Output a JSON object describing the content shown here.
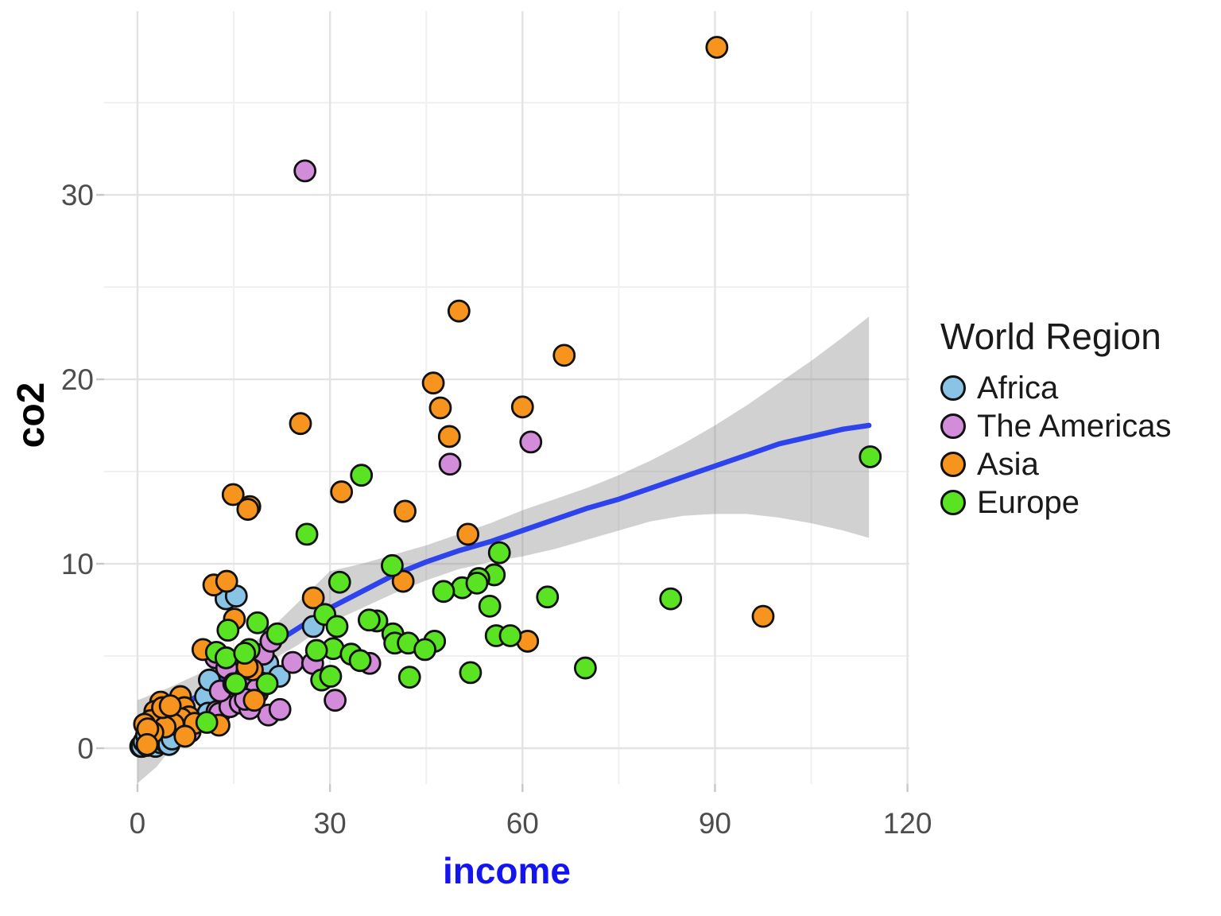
{
  "chart_data": {
    "type": "scatter",
    "title": "",
    "xlabel": "income",
    "ylabel": "co2",
    "x_ticks": [
      0,
      30,
      60,
      90,
      120
    ],
    "y_ticks": [
      0,
      10,
      20,
      30
    ],
    "x_minor_ticks": [
      15,
      45,
      75,
      105
    ],
    "y_minor_ticks": [
      5,
      15,
      25,
      35
    ],
    "xlim": [
      -5.2,
      120.3
    ],
    "ylim": [
      -1.94,
      39.96
    ],
    "grid": true,
    "legend": {
      "title": "World Region",
      "position": "right",
      "entries": [
        {
          "label": "Africa",
          "color": "#89C4E7"
        },
        {
          "label": "The Americas",
          "color": "#D28CDA"
        },
        {
          "label": "Asia",
          "color": "#F7941E"
        },
        {
          "label": "Europe",
          "color": "#5AE322"
        }
      ]
    },
    "series": [
      {
        "name": "Africa",
        "color": "#89C4E7",
        "points": [
          [
            0.5,
            0.1
          ],
          [
            0.7,
            0.1
          ],
          [
            1.0,
            0.35
          ],
          [
            1.5,
            0.15
          ],
          [
            1.9,
            0.55
          ],
          [
            2.3,
            0.3
          ],
          [
            2.8,
            0.1
          ],
          [
            3.2,
            0.5
          ],
          [
            3.6,
            0.3
          ],
          [
            3.7,
            0.85
          ],
          [
            4.3,
            0.35
          ],
          [
            4.9,
            0.2
          ],
          [
            2.4,
            0.95
          ],
          [
            5.4,
            0.5
          ],
          [
            1.4,
            0.7
          ],
          [
            10.6,
            2.8
          ],
          [
            11.2,
            3.7
          ],
          [
            11.0,
            1.9
          ],
          [
            20.3,
            4.6
          ],
          [
            22.1,
            3.9
          ],
          [
            13.8,
            8.1
          ],
          [
            15.4,
            8.25
          ],
          [
            27.4,
            6.6
          ]
        ]
      },
      {
        "name": "The Americas",
        "color": "#D28CDA",
        "points": [
          [
            26.1,
            31.3
          ],
          [
            48.7,
            15.4
          ],
          [
            61.3,
            16.6
          ],
          [
            12.2,
            4.9
          ],
          [
            12.4,
            2.0
          ],
          [
            14.9,
            2.6
          ],
          [
            18.0,
            3.35
          ],
          [
            18.7,
            3.0
          ],
          [
            20.4,
            1.8
          ],
          [
            22.2,
            2.1
          ],
          [
            24.2,
            4.65
          ],
          [
            27.3,
            4.6
          ],
          [
            30.8,
            2.6
          ],
          [
            19.6,
            5.1
          ],
          [
            20.8,
            5.8
          ],
          [
            36.2,
            4.6
          ],
          [
            12.8,
            1.9
          ],
          [
            14.4,
            2.25
          ],
          [
            16.0,
            2.45
          ],
          [
            17.5,
            2.15
          ],
          [
            8.2,
            0.9
          ],
          [
            16.5,
            3.4
          ],
          [
            12.9,
            3.1
          ],
          [
            18.6,
            3.2
          ],
          [
            16.8,
            2.65
          ],
          [
            13.9,
            4.35
          ]
        ]
      },
      {
        "name": "Asia",
        "color": "#F7941E",
        "points": [
          [
            90.3,
            38.0
          ],
          [
            50.1,
            23.7
          ],
          [
            66.5,
            21.3
          ],
          [
            46.1,
            19.8
          ],
          [
            47.2,
            18.45
          ],
          [
            60.0,
            18.5
          ],
          [
            48.6,
            16.9
          ],
          [
            25.4,
            17.6
          ],
          [
            14.9,
            13.75
          ],
          [
            17.5,
            13.1
          ],
          [
            31.8,
            13.9
          ],
          [
            41.7,
            12.85
          ],
          [
            17.2,
            12.95
          ],
          [
            51.5,
            11.6
          ],
          [
            11.9,
            8.85
          ],
          [
            13.9,
            9.05
          ],
          [
            41.4,
            9.05
          ],
          [
            15.1,
            7.0
          ],
          [
            27.4,
            8.15
          ],
          [
            97.5,
            7.15
          ],
          [
            60.8,
            5.8
          ],
          [
            10.2,
            5.35
          ],
          [
            17.9,
            4.25
          ],
          [
            18.2,
            2.6
          ],
          [
            15.0,
            3.5
          ],
          [
            17.1,
            4.4
          ],
          [
            12.7,
            1.25
          ],
          [
            3.6,
            2.5
          ],
          [
            2.7,
            2.0
          ],
          [
            4.6,
            1.8
          ],
          [
            2.1,
            1.5
          ],
          [
            1.1,
            1.3
          ],
          [
            6.7,
            2.8
          ],
          [
            7.3,
            2.2
          ],
          [
            8.0,
            1.7
          ],
          [
            6.8,
            1.6
          ],
          [
            8.9,
            1.35
          ],
          [
            5.6,
            1.3
          ],
          [
            4.3,
            1.15
          ],
          [
            7.4,
            0.65
          ],
          [
            3.9,
            2.2
          ],
          [
            2.4,
            0.85
          ],
          [
            1.6,
            1.05
          ],
          [
            5.1,
            2.3
          ],
          [
            1.5,
            0.2
          ]
        ]
      },
      {
        "name": "Europe",
        "color": "#5AE322",
        "points": [
          [
            114.2,
            15.8
          ],
          [
            83.1,
            8.1
          ],
          [
            69.8,
            4.35
          ],
          [
            63.9,
            8.2
          ],
          [
            55.9,
            6.1
          ],
          [
            58.1,
            6.1
          ],
          [
            56.4,
            10.6
          ],
          [
            55.6,
            9.4
          ],
          [
            53.2,
            9.2
          ],
          [
            50.6,
            8.7
          ],
          [
            47.7,
            8.5
          ],
          [
            54.9,
            7.7
          ],
          [
            51.9,
            4.1
          ],
          [
            46.3,
            5.8
          ],
          [
            42.4,
            3.85
          ],
          [
            34.9,
            14.8
          ],
          [
            26.4,
            11.6
          ],
          [
            39.7,
            9.9
          ],
          [
            31.5,
            9.0
          ],
          [
            52.9,
            8.95
          ],
          [
            37.3,
            6.9
          ],
          [
            36.1,
            6.95
          ],
          [
            39.8,
            6.2
          ],
          [
            40.1,
            5.7
          ],
          [
            42.2,
            5.7
          ],
          [
            44.8,
            5.35
          ],
          [
            29.2,
            7.25
          ],
          [
            31.1,
            6.6
          ],
          [
            30.5,
            5.4
          ],
          [
            33.3,
            5.1
          ],
          [
            34.7,
            4.75
          ],
          [
            15.3,
            3.5
          ],
          [
            12.3,
            5.2
          ],
          [
            13.8,
            4.9
          ],
          [
            14.1,
            6.4
          ],
          [
            18.7,
            6.8
          ],
          [
            21.8,
            6.2
          ],
          [
            17.4,
            5.35
          ],
          [
            27.9,
            5.3
          ],
          [
            20.2,
            3.5
          ],
          [
            28.7,
            3.7
          ],
          [
            30.1,
            3.9
          ],
          [
            16.7,
            5.15
          ],
          [
            10.8,
            1.4
          ]
        ]
      }
    ],
    "smooth": {
      "color": "#2E43EC",
      "band_color": "rgba(128,128,128,0.36)",
      "line": [
        [
          0,
          0.6
        ],
        [
          5,
          1.8
        ],
        [
          10,
          3.0
        ],
        [
          15,
          4.2
        ],
        [
          20,
          5.4
        ],
        [
          25,
          6.5
        ],
        [
          30,
          7.6
        ],
        [
          35,
          8.5
        ],
        [
          40,
          9.4
        ],
        [
          45,
          10.1
        ],
        [
          50,
          10.7
        ],
        [
          55,
          11.2
        ],
        [
          60,
          11.8
        ],
        [
          65,
          12.4
        ],
        [
          70,
          13.0
        ],
        [
          75,
          13.5
        ],
        [
          80,
          14.1
        ],
        [
          85,
          14.7
        ],
        [
          90,
          15.3
        ],
        [
          95,
          15.9
        ],
        [
          100,
          16.5
        ],
        [
          105,
          16.9
        ],
        [
          110,
          17.3
        ],
        [
          114,
          17.5
        ]
      ],
      "band_upper": [
        [
          0,
          2.6
        ],
        [
          5,
          3.3
        ],
        [
          10,
          4.1
        ],
        [
          15,
          5.0
        ],
        [
          20,
          6.2
        ],
        [
          25,
          7.9
        ],
        [
          30,
          9.6
        ],
        [
          35,
          10.0
        ],
        [
          40,
          10.5
        ],
        [
          45,
          11.0
        ],
        [
          50,
          11.6
        ],
        [
          55,
          12.2
        ],
        [
          60,
          12.9
        ],
        [
          65,
          13.5
        ],
        [
          70,
          14.1
        ],
        [
          75,
          14.8
        ],
        [
          80,
          15.6
        ],
        [
          85,
          16.5
        ],
        [
          90,
          17.5
        ],
        [
          95,
          18.6
        ],
        [
          100,
          19.8
        ],
        [
          105,
          21.0
        ],
        [
          110,
          22.3
        ],
        [
          114,
          23.4
        ]
      ],
      "band_lower": [
        [
          0,
          -1.9
        ],
        [
          3,
          -1.0
        ],
        [
          6,
          0.3
        ],
        [
          10,
          1.9
        ],
        [
          15,
          3.4
        ],
        [
          20,
          4.6
        ],
        [
          25,
          5.6
        ],
        [
          30,
          6.8
        ],
        [
          35,
          7.6
        ],
        [
          40,
          8.4
        ],
        [
          45,
          9.1
        ],
        [
          50,
          9.7
        ],
        [
          55,
          10.1
        ],
        [
          60,
          10.4
        ],
        [
          65,
          10.8
        ],
        [
          70,
          11.3
        ],
        [
          75,
          11.8
        ],
        [
          80,
          12.3
        ],
        [
          85,
          12.6
        ],
        [
          90,
          12.7
        ],
        [
          95,
          12.7
        ],
        [
          100,
          12.5
        ],
        [
          105,
          12.2
        ],
        [
          110,
          11.8
        ],
        [
          114,
          11.4
        ]
      ]
    },
    "styles": {
      "point_stroke": "#111111",
      "point_radius": 13,
      "grid_major": "#E3E3E3",
      "grid_minor": "#F0F0F0",
      "tick_text_color": "#4D4D4D",
      "tick_mark_color": "#C8C8C8",
      "xlabel_color": "#1414F0",
      "ylabel_color": "#000000"
    }
  }
}
